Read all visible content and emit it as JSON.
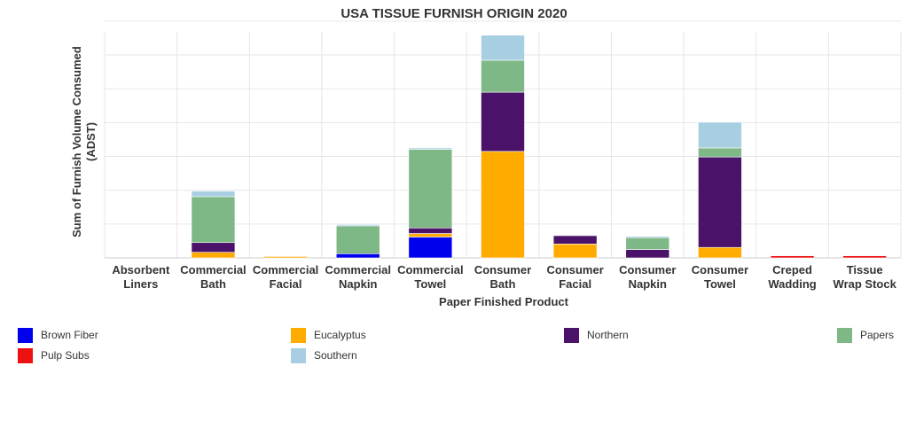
{
  "chart_data": {
    "type": "bar",
    "stacked": true,
    "title": "USA TISSUE FURNISH ORIGIN 2020",
    "xlabel": "Paper Finished Product",
    "ylabel_lines": [
      "Sum of Furnish Volume Consumed",
      "(ADST)"
    ],
    "ylim": [
      0,
      340
    ],
    "grid": true,
    "legend_position": "bottom",
    "categories": [
      [
        "Absorbent",
        "Liners"
      ],
      [
        "Commercial",
        "Bath"
      ],
      [
        "Commercial",
        "Facial"
      ],
      [
        "Commercial",
        "Napkin"
      ],
      [
        "Commercial",
        "Towel"
      ],
      [
        "Consumer",
        "Bath"
      ],
      [
        "Consumer",
        "Facial"
      ],
      [
        "Consumer",
        "Napkin"
      ],
      [
        "Consumer",
        "Towel"
      ],
      [
        "Creped",
        "Wadding"
      ],
      [
        "Tissue",
        "Wrap Stock"
      ]
    ],
    "series": [
      {
        "name": "Brown Fiber",
        "color": "#0000ee",
        "values": [
          0,
          0,
          0,
          6,
          30,
          0,
          0,
          0,
          0,
          0,
          0
        ]
      },
      {
        "name": "Eucalyptus",
        "color": "#ffab00",
        "values": [
          0,
          8,
          2,
          0,
          5,
          153,
          20,
          0,
          15,
          0,
          0
        ]
      },
      {
        "name": "Northern",
        "color": "#4a1268",
        "values": [
          0,
          14,
          0,
          0,
          8,
          85,
          12,
          12,
          130,
          0,
          0
        ]
      },
      {
        "name": "Papers",
        "color": "#7fb887",
        "values": [
          0,
          66,
          0,
          40,
          113,
          46,
          1,
          17,
          13,
          0,
          0
        ]
      },
      {
        "name": "Pulp Subs",
        "color": "#ee1111",
        "values": [
          0,
          0,
          0,
          0,
          0,
          0,
          0,
          0,
          0,
          3,
          3
        ]
      },
      {
        "name": "Southern",
        "color": "#a8cee2",
        "values": [
          0,
          8,
          0,
          2,
          2,
          36,
          0,
          2,
          37,
          0,
          0
        ]
      }
    ]
  }
}
